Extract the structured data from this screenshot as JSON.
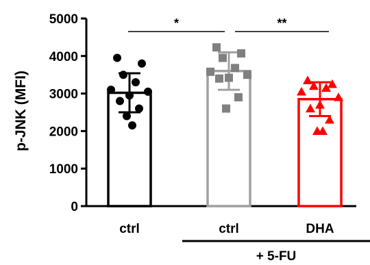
{
  "chart_data": {
    "type": "bar",
    "ylabel": "p-JNK (MFI)",
    "ylim": [
      0,
      5000
    ],
    "yticks": [
      0,
      1000,
      2000,
      3000,
      4000,
      5000
    ],
    "categories": [
      "ctrl",
      "ctrl",
      "DHA"
    ],
    "group_label": "+ 5-FU",
    "group_spans_categories": [
      1,
      2
    ],
    "bars": [
      {
        "category": "ctrl",
        "mean": 3020,
        "sd": 520,
        "color": "#000000",
        "marker": "circle",
        "fill": "#ffffff",
        "points": [
          3950,
          3800,
          3500,
          3300,
          3100,
          3050,
          2950,
          2800,
          2600,
          2400,
          2150
        ]
      },
      {
        "category": "ctrl",
        "mean": 3600,
        "sd": 500,
        "color": "#a0a0a0",
        "marker": "square",
        "fill": "#ffffff",
        "points": [
          4230,
          4070,
          3950,
          3680,
          3580,
          3500,
          3420,
          3400,
          2900,
          2600
        ]
      },
      {
        "category": "DHA",
        "mean": 2850,
        "sd": 450,
        "color": "#ff0000",
        "marker": "triangle",
        "fill": "#ffffff",
        "points": [
          3350,
          3250,
          3200,
          3150,
          3050,
          2900,
          2700,
          2600,
          2300,
          2000,
          2000
        ]
      }
    ],
    "significance": [
      {
        "from": 0,
        "to": 1,
        "label": "*",
        "y": 4650
      },
      {
        "from": 1,
        "to": 2,
        "label": "**",
        "y": 4650
      }
    ],
    "grid": false,
    "legend": "none"
  }
}
